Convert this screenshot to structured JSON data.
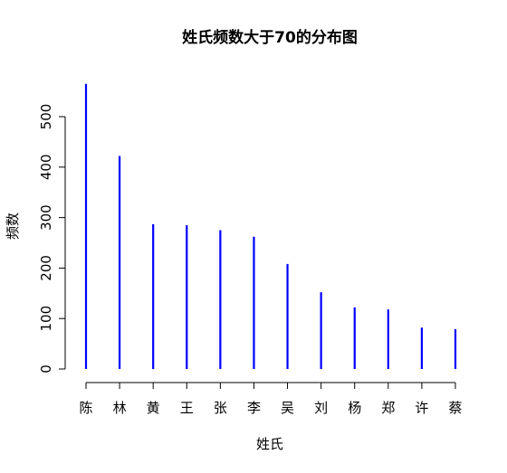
{
  "chart_data": {
    "type": "bar",
    "title": "姓氏频数大于70的分布图",
    "xlabel": "姓氏",
    "ylabel": "频数",
    "categories": [
      "陈",
      "林",
      "黄",
      "王",
      "张",
      "李",
      "吴",
      "刘",
      "杨",
      "郑",
      "许",
      "蔡"
    ],
    "values": [
      565,
      422,
      287,
      285,
      275,
      262,
      208,
      152,
      122,
      118,
      82,
      79
    ],
    "ylim": [
      0,
      565
    ],
    "yticks": [
      0,
      100,
      200,
      300,
      400,
      500
    ],
    "bar_color": "#0000ff",
    "grid": false,
    "legend": "none"
  }
}
